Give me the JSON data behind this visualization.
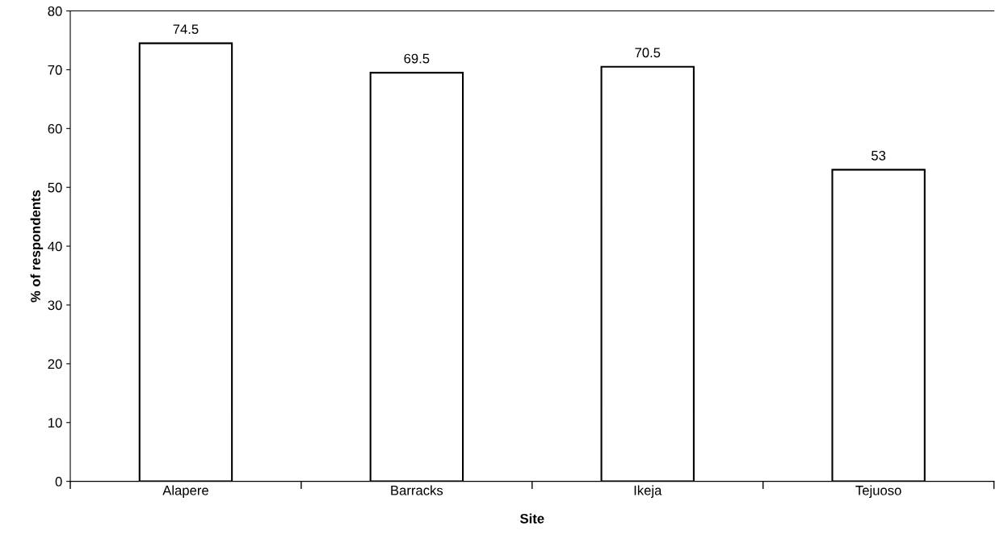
{
  "chart_data": {
    "type": "bar",
    "xlabel": "Site",
    "ylabel": "% of respondents",
    "categories": [
      "Alapere",
      "Barracks",
      "Ikeja",
      "Tejuoso"
    ],
    "values": [
      74.5,
      69.5,
      70.5,
      53
    ],
    "color": "#ffffff",
    "ylim": [
      0,
      80
    ],
    "yticks": [
      0,
      10,
      20,
      30,
      40,
      50,
      60,
      70,
      80
    ],
    "data_labels": true,
    "grid": false,
    "legend": false
  }
}
